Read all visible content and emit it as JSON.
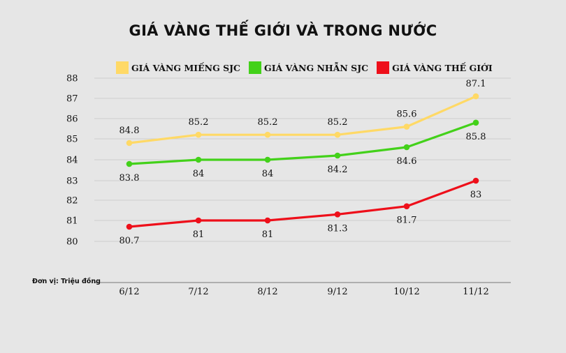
{
  "chart_data": {
    "type": "line",
    "title": "GIÁ VÀNG THẾ GIỚI VÀ TRONG NƯỚC",
    "unit_note": "Đơn vị: Triệu đồng",
    "categories": [
      "6/12",
      "7/12",
      "8/12",
      "9/12",
      "10/12",
      "11/12"
    ],
    "y_ticks": [
      "80",
      "81",
      "82",
      "83",
      "84",
      "85",
      "86",
      "87",
      "88"
    ],
    "ylim": [
      80,
      88
    ],
    "grid": true,
    "legend_position": "top",
    "series": [
      {
        "name": "GIÁ VÀNG MIẾNG SJC",
        "color": "#ffd966",
        "values": [
          84.8,
          85.2,
          85.2,
          85.2,
          85.6,
          87.1
        ],
        "labels": [
          "84.8",
          "85.2",
          "85.2",
          "85.2",
          "85.6",
          "87.1"
        ],
        "label_pos": "above"
      },
      {
        "name": "GIÁ VÀNG NHẪN SJC",
        "color": "#43d11a",
        "values": [
          83.8,
          84,
          84,
          84.2,
          84.6,
          85.8
        ],
        "labels": [
          "83.8",
          "84",
          "84",
          "84.2",
          "84.6",
          "85.8"
        ],
        "label_pos": "below"
      },
      {
        "name": "GIÁ VÀNG THẾ GIỚI",
        "color": "#ee0f1a",
        "values": [
          80.7,
          81,
          81,
          81.3,
          81.7,
          83
        ],
        "labels": [
          "80.7",
          "81",
          "81",
          "81.3",
          "81.7",
          "83"
        ],
        "label_pos": "below"
      }
    ]
  }
}
